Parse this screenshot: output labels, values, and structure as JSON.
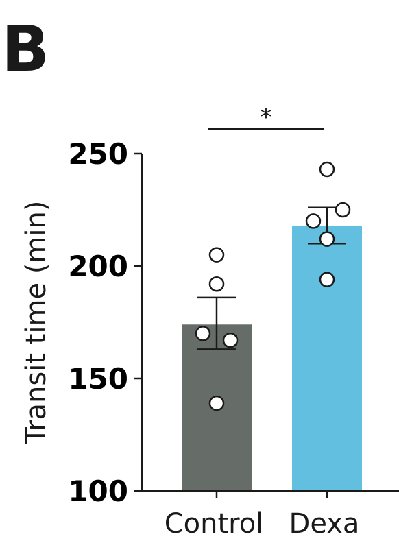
{
  "panel_label": "B",
  "colors": {
    "control_bar": "#666c67",
    "dexa_bar": "#62bfe0",
    "axis": "#1a1a1a",
    "point_fill": "#ffffff",
    "point_stroke": "#1a1a1a"
  },
  "chart_data": {
    "type": "bar",
    "ylabel": "Transit time (min)",
    "xlabel": "",
    "ylim": [
      100,
      250
    ],
    "yticks": [
      100,
      150,
      200,
      250
    ],
    "yticks_text": [
      "100",
      "150",
      "200",
      "250"
    ],
    "categories": [
      "Control",
      "Dexa"
    ],
    "values": [
      174,
      218
    ],
    "error_bars": [
      {
        "low": 163,
        "high": 186
      },
      {
        "low": 210,
        "high": 226
      }
    ],
    "points": [
      [
        205,
        192,
        170,
        167,
        139
      ],
      [
        243,
        225,
        220,
        212,
        194
      ]
    ],
    "significance": {
      "label": "*",
      "between": [
        "Control",
        "Dexa"
      ]
    },
    "grid": false,
    "legend": "none"
  }
}
